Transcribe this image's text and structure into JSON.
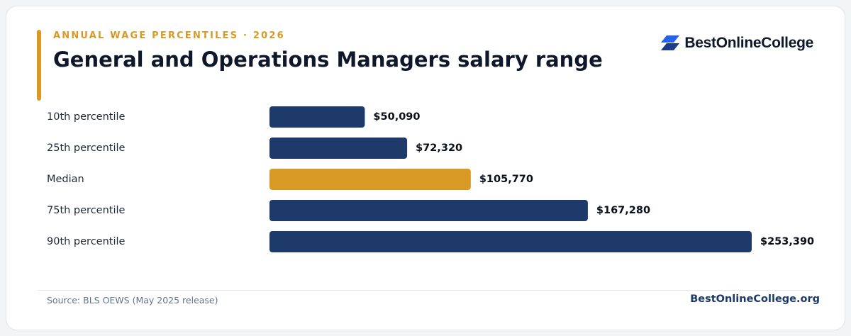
{
  "header": {
    "eyebrow": "ANNUAL WAGE PERCENTILES · 2026",
    "title": "General and Operations Managers salary range"
  },
  "brand": {
    "name": "BestOnlineCollege",
    "icon": "parallelogram-stack-icon",
    "icon_colors": [
      "#2563eb",
      "#1e3a8a"
    ]
  },
  "colors": {
    "accent": "#d89a25",
    "bar_default": "#1e3a6b",
    "bar_highlight": "#d89a25",
    "label_text": "#1f2937",
    "value_text": "#0b0f19"
  },
  "chart_data": {
    "type": "bar",
    "orientation": "horizontal",
    "categories": [
      "10th percentile",
      "25th percentile",
      "Median",
      "75th percentile",
      "90th percentile"
    ],
    "values": [
      50090,
      72320,
      105770,
      167280,
      253390
    ],
    "value_labels": [
      "$50,090",
      "$72,320",
      "$105,770",
      "$167,280",
      "$253,390"
    ],
    "highlight": "Median",
    "xlim": [
      0,
      253390
    ],
    "grid": false,
    "legend": "none"
  },
  "footer": {
    "source": "Source: BLS OEWS (May 2025 release)",
    "site": "BestOnlineCollege.org"
  }
}
